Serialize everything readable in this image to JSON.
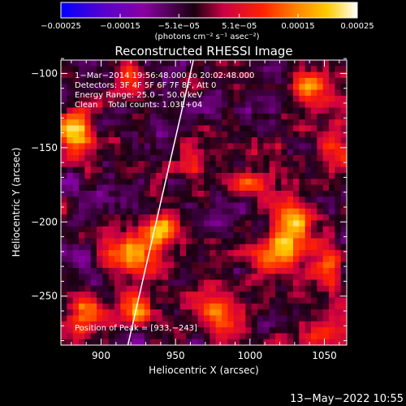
{
  "chart_data": {
    "type": "heatmap",
    "title": "Reconstructed RHESSI Image",
    "xlabel": "Heliocentric X (arcsec)",
    "ylabel": "Heliocentric Y (arcsec)",
    "xlim": [
      873,
      1065
    ],
    "ylim": [
      -283,
      -91
    ],
    "x_ticks": [
      900,
      950,
      1000,
      1050
    ],
    "x_tick_labels": [
      "900",
      "950",
      "1000",
      "1050"
    ],
    "y_ticks": [
      -100,
      -150,
      -200,
      -250
    ],
    "y_tick_labels": [
      "−100",
      "−150",
      "−200",
      "−250"
    ],
    "colorbar": {
      "range": [
        -0.00025,
        0.00025
      ],
      "ticks": [
        -0.00025,
        -0.00015,
        -5.1e-05,
        5.1e-05,
        0.00015,
        0.00025
      ],
      "tick_labels": [
        "−0.00025",
        "−0.00015",
        "−5.1e−05",
        "5.1e−05",
        "0.00015",
        "0.00025"
      ],
      "units_label": "(photons cm⁻² s⁻¹ asec⁻²)",
      "colors": [
        "#0000ff",
        "#5500d0",
        "#8800a0",
        "#cc0044",
        "#ff2200",
        "#ff8800",
        "#ffcc00",
        "#ffffff"
      ]
    },
    "annotations": [
      "1−Mar−2014 19:56:48.000 to 20:02:48.000",
      "Detectors: 3F 4F 5F 6F 7F 8F, Att 0",
      "Energy Range: 25.0 − 50.0 keV",
      "Clean    Total counts: 1.03E+04",
      "Position of Peak = [933,−243]"
    ],
    "limb_line": [
      [
        918,
        -283
      ],
      [
        962,
        -91
      ]
    ],
    "peak_position": [
      933,
      -243
    ],
    "hotspots": [
      {
        "x": 882,
        "y": -140,
        "intensity": 0.00024,
        "sigma": 10
      },
      {
        "x": 920,
        "y": -222,
        "intensity": 0.0002,
        "sigma": 11
      },
      {
        "x": 942,
        "y": -205,
        "intensity": 0.00025,
        "sigma": 7
      },
      {
        "x": 1020,
        "y": -222,
        "intensity": 0.00025,
        "sigma": 10
      },
      {
        "x": 1030,
        "y": -200,
        "intensity": 0.00022,
        "sigma": 9
      },
      {
        "x": 1040,
        "y": -110,
        "intensity": 0.0002,
        "sigma": 9
      },
      {
        "x": 1060,
        "y": -150,
        "intensity": 0.00016,
        "sigma": 9
      },
      {
        "x": 1052,
        "y": -230,
        "intensity": 0.00018,
        "sigma": 9
      },
      {
        "x": 980,
        "y": -260,
        "intensity": 0.00018,
        "sigma": 10
      },
      {
        "x": 925,
        "y": -260,
        "intensity": 0.00017,
        "sigma": 8
      },
      {
        "x": 890,
        "y": -260,
        "intensity": 0.00016,
        "sigma": 9
      },
      {
        "x": 915,
        "y": -105,
        "intensity": 0.00014,
        "sigma": 8
      },
      {
        "x": 1000,
        "y": -175,
        "intensity": 0.00013,
        "sigma": 8
      },
      {
        "x": 1050,
        "y": -275,
        "intensity": 0.00014,
        "sigma": 8
      },
      {
        "x": 960,
        "y": -160,
        "intensity": 0.0001,
        "sigma": 9
      }
    ]
  },
  "footer": {
    "timestamp": "13−May−2022 10:55"
  }
}
